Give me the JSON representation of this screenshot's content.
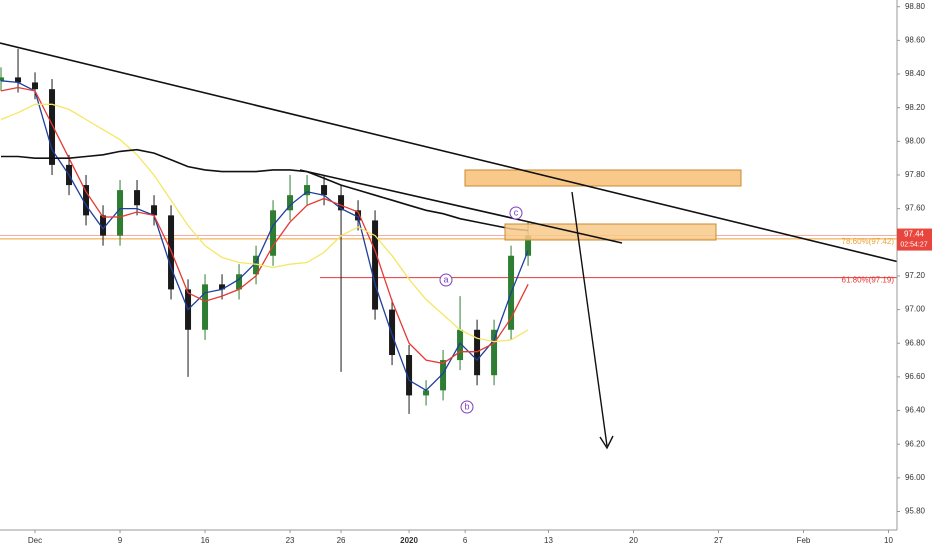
{
  "chart_data": {
    "type": "candlestick",
    "x": [
      -2,
      -1,
      0,
      1,
      2,
      3,
      4,
      5,
      6,
      7,
      8,
      9,
      10,
      11,
      12,
      13,
      14,
      15,
      16,
      17,
      18,
      19,
      20,
      21,
      22,
      23,
      24,
      25,
      26,
      27,
      28,
      29
    ],
    "open": [
      98.36,
      98.38,
      98.35,
      98.31,
      97.86,
      97.74,
      97.56,
      97.44,
      97.71,
      97.62,
      97.56,
      97.12,
      96.88,
      97.15,
      97.12,
      97.21,
      97.32,
      97.59,
      97.68,
      97.74,
      97.68,
      97.59,
      97.53,
      97.0,
      96.73,
      96.49,
      96.52,
      96.7,
      96.88,
      96.61,
      96.88,
      97.32
    ],
    "high": [
      98.44,
      98.55,
      98.41,
      98.37,
      97.92,
      97.8,
      97.62,
      97.77,
      97.77,
      97.68,
      97.62,
      97.18,
      97.21,
      97.21,
      97.27,
      97.38,
      97.65,
      97.8,
      97.8,
      97.8,
      97.74,
      97.65,
      97.59,
      97.06,
      96.79,
      96.58,
      96.76,
      97.08,
      96.94,
      96.94,
      97.38,
      97.52
    ],
    "low": [
      98.3,
      98.29,
      98.25,
      97.8,
      97.68,
      97.5,
      97.38,
      97.38,
      97.56,
      97.5,
      97.06,
      96.6,
      96.82,
      97.06,
      97.06,
      97.15,
      97.26,
      97.53,
      97.62,
      97.62,
      96.63,
      97.47,
      96.94,
      96.67,
      96.38,
      96.43,
      96.46,
      96.64,
      96.55,
      96.55,
      96.82,
      97.26
    ],
    "close": [
      98.38,
      98.35,
      98.31,
      97.86,
      97.74,
      97.56,
      97.44,
      97.71,
      97.62,
      97.56,
      97.12,
      96.88,
      97.15,
      97.12,
      97.21,
      97.32,
      97.59,
      97.68,
      97.74,
      97.68,
      97.59,
      97.53,
      97.0,
      96.73,
      96.49,
      96.52,
      96.7,
      96.88,
      96.61,
      96.88,
      97.32,
      97.44
    ],
    "up_color": "#2e7d32",
    "down_color": "#1a1a1a",
    "lines": [
      {
        "color": "#1e3f9e",
        "values": [
          98.36,
          98.35,
          98.3,
          97.95,
          97.8,
          97.62,
          97.48,
          97.6,
          97.6,
          97.56,
          97.25,
          97.0,
          97.1,
          97.12,
          97.18,
          97.28,
          97.5,
          97.62,
          97.7,
          97.68,
          97.6,
          97.55,
          97.15,
          96.85,
          96.58,
          96.52,
          96.62,
          96.8,
          96.7,
          96.82,
          97.1,
          97.35
        ]
      },
      {
        "color": "#e53935",
        "values": [
          98.3,
          98.32,
          98.3,
          98.1,
          97.9,
          97.7,
          97.55,
          97.55,
          97.58,
          97.56,
          97.35,
          97.1,
          97.05,
          97.08,
          97.12,
          97.2,
          97.38,
          97.52,
          97.62,
          97.66,
          97.62,
          97.58,
          97.35,
          97.05,
          96.8,
          96.7,
          96.68,
          96.75,
          96.75,
          96.8,
          96.95,
          97.15
        ]
      },
      {
        "color": "#f5e663",
        "values": [
          98.13,
          98.17,
          98.22,
          98.22,
          98.19,
          98.13,
          98.07,
          98.01,
          97.92,
          97.8,
          97.65,
          97.5,
          97.38,
          97.31,
          97.28,
          97.27,
          97.25,
          97.27,
          97.28,
          97.34,
          97.44,
          97.49,
          97.44,
          97.32,
          97.18,
          97.06,
          96.97,
          96.88,
          96.83,
          96.81,
          96.82,
          96.88
        ]
      },
      {
        "color": "#111111",
        "values": [
          97.91,
          97.91,
          97.9,
          97.9,
          97.9,
          97.91,
          97.92,
          97.94,
          97.95,
          97.93,
          97.89,
          97.85,
          97.83,
          97.82,
          97.82,
          97.82,
          97.83,
          97.83,
          97.82,
          97.78,
          97.74,
          97.71,
          97.68,
          97.65,
          97.62,
          97.59,
          97.57,
          97.54,
          97.52,
          97.5,
          97.48,
          97.47
        ]
      }
    ],
    "levels": [
      {
        "label": "78.60%(97.42)",
        "value": 97.42,
        "color": "#f0a030"
      },
      {
        "label": "61.80%(97.19)",
        "value": 97.19,
        "color": "#e53935"
      }
    ],
    "last_price": 97.44,
    "countdown": "02:54:27",
    "last_color": "#e8453c",
    "waves": [
      "a",
      "b",
      "c"
    ],
    "xlim": [
      -2.06,
      50.7
    ],
    "ylim": [
      95.69,
      98.84
    ],
    "xticks": [
      {
        "value": 0,
        "label": "Dec"
      },
      {
        "value": 5,
        "label": "9"
      },
      {
        "value": 10,
        "label": "16"
      },
      {
        "value": 15,
        "label": "23"
      },
      {
        "value": 18,
        "label": "26"
      },
      {
        "value": 22,
        "label": "2020"
      },
      {
        "value": 25.3,
        "label": "6"
      },
      {
        "value": 30.2,
        "label": "13"
      },
      {
        "value": 35.2,
        "label": "20"
      },
      {
        "value": 40.2,
        "label": "27"
      },
      {
        "value": 45.2,
        "label": "Feb"
      },
      {
        "value": 50.2,
        "label": "10"
      }
    ],
    "yticks": [
      {
        "value": 98.8,
        "label": "98.80"
      },
      {
        "value": 98.6,
        "label": "98.60"
      },
      {
        "value": 98.4,
        "label": "98.40"
      },
      {
        "value": 98.2,
        "label": "98.20"
      },
      {
        "value": 98.0,
        "label": "98.00"
      },
      {
        "value": 97.8,
        "label": "97.80"
      },
      {
        "value": 97.6,
        "label": "97.60"
      },
      {
        "value": 97.2,
        "label": "97.20"
      },
      {
        "value": 97.0,
        "label": "97.00"
      },
      {
        "value": 96.8,
        "label": "96.80"
      },
      {
        "value": 96.6,
        "label": "96.60"
      },
      {
        "value": 96.4,
        "label": "96.40"
      },
      {
        "value": 96.2,
        "label": "96.20"
      },
      {
        "value": 96.0,
        "label": "96.00"
      },
      {
        "value": 95.8,
        "label": "95.80"
      }
    ]
  }
}
